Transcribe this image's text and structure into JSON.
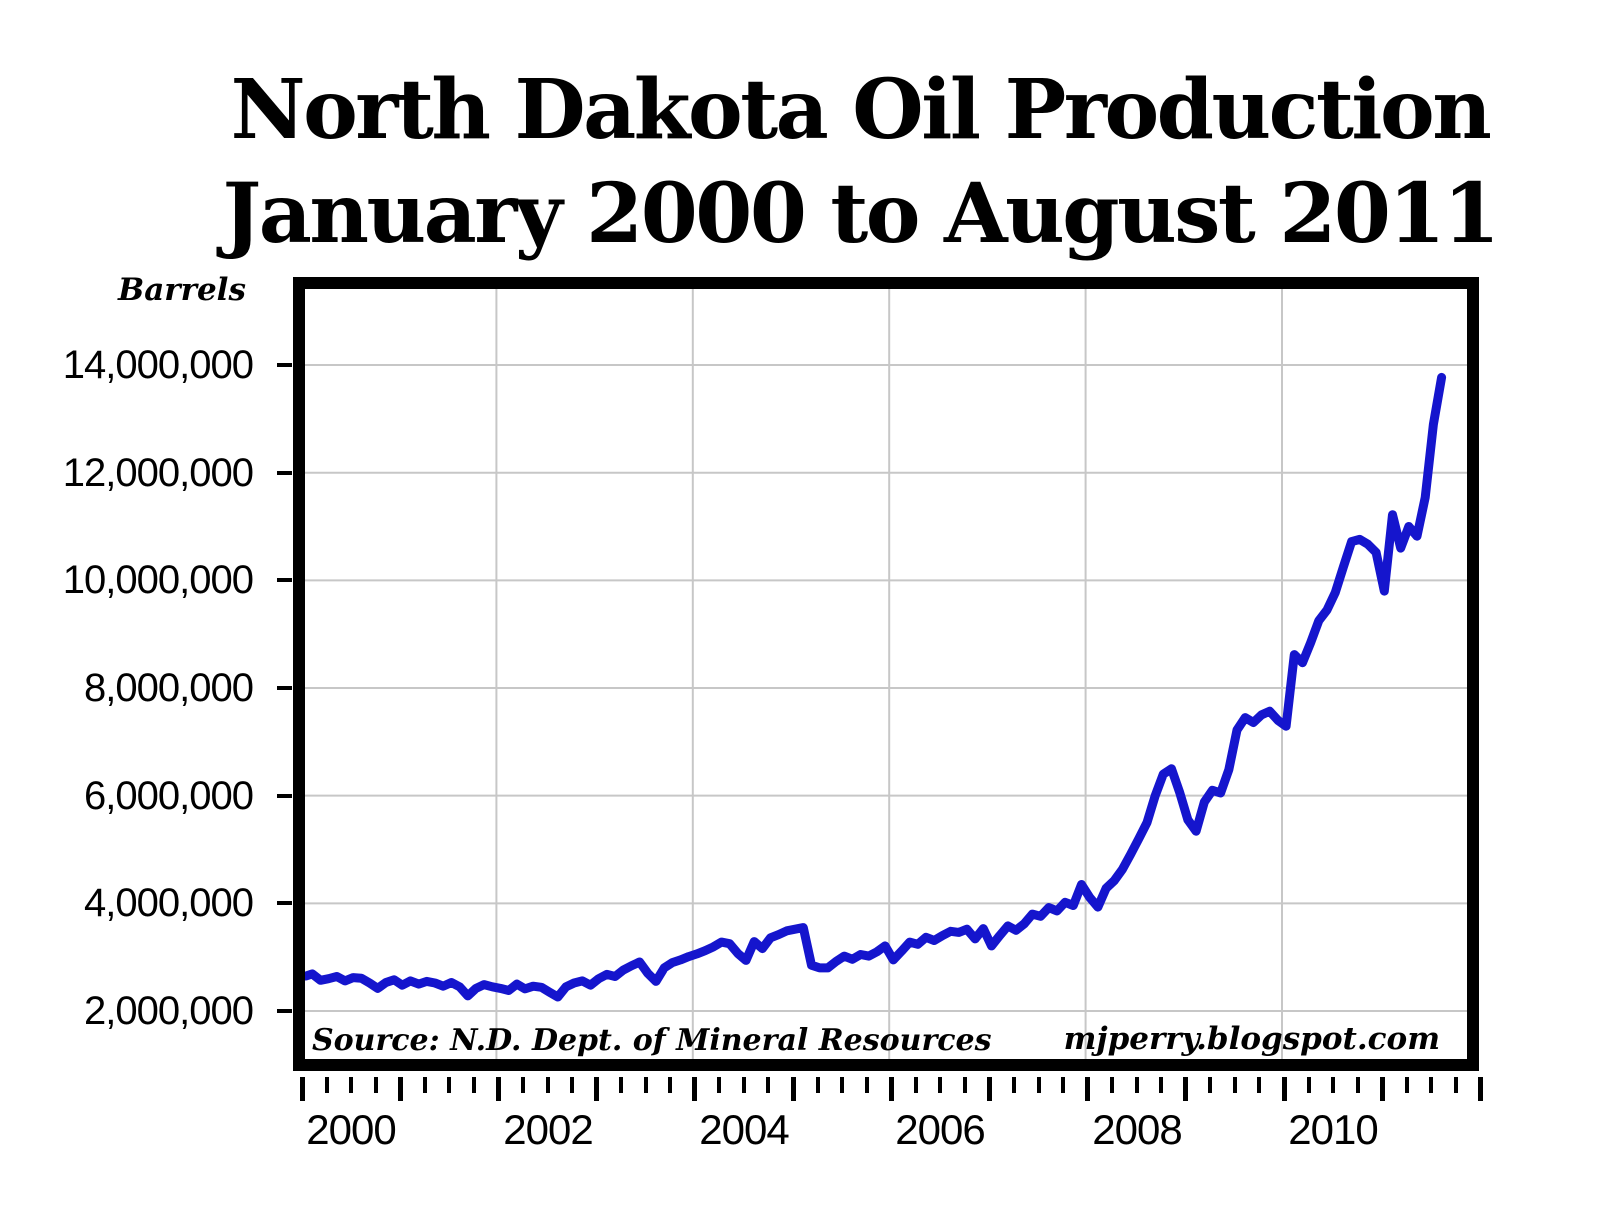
{
  "title": {
    "line1": "North Dakota Oil Production",
    "line2": "January 2000 to August 2011"
  },
  "annotations": {
    "source": "Source: N.D. Dept. of Mineral Resources",
    "credit": "mjperry.blogspot.com"
  },
  "chart_data": {
    "type": "line",
    "title": "North Dakota Oil Production January 2000 to August 2011",
    "xlabel": "",
    "ylabel": "Barrels",
    "x_range_years": [
      2000,
      2012
    ],
    "ylim_barrels": [
      1100000,
      15400000
    ],
    "grid": true,
    "legend_position": "none",
    "line_color": "#1515cd",
    "grid_color": "#c7c7c7",
    "frame_color": "#000000",
    "y_ticks": [
      {
        "label": "14,000,000",
        "value_millions": 14
      },
      {
        "label": "12,000,000",
        "value_millions": 12
      },
      {
        "label": "10,000,000",
        "value_millions": 10
      },
      {
        "label": "8,000,000",
        "value_millions": 8
      },
      {
        "label": "6,000,000",
        "value_millions": 6
      },
      {
        "label": "4,000,000",
        "value_millions": 4
      },
      {
        "label": "2,000,000",
        "value_millions": 2
      }
    ],
    "x_gridline_years": [
      2002,
      2004,
      2006,
      2008,
      2010
    ],
    "x_minor_tick_interval_years": 0.25,
    "x_major_tick_interval_years": 1,
    "x_tick_labels": [
      {
        "label": "2000",
        "x_year": 2000.5
      },
      {
        "label": "2002",
        "x_year": 2002.5
      },
      {
        "label": "2004",
        "x_year": 2004.5
      },
      {
        "label": "2006",
        "x_year": 2006.5
      },
      {
        "label": "2008",
        "x_year": 2008.5
      },
      {
        "label": "2010",
        "x_year": 2010.5
      }
    ],
    "series": [
      {
        "name": "North Dakota monthly oil production (barrels)",
        "start_month": "2000-01",
        "end_month": "2011-08",
        "values_millions": [
          2.65,
          2.69,
          2.57,
          2.6,
          2.64,
          2.56,
          2.62,
          2.61,
          2.52,
          2.42,
          2.53,
          2.58,
          2.48,
          2.56,
          2.5,
          2.55,
          2.52,
          2.46,
          2.53,
          2.45,
          2.28,
          2.42,
          2.49,
          2.45,
          2.42,
          2.38,
          2.5,
          2.41,
          2.46,
          2.44,
          2.35,
          2.26,
          2.45,
          2.52,
          2.56,
          2.48,
          2.6,
          2.68,
          2.64,
          2.76,
          2.84,
          2.91,
          2.7,
          2.55,
          2.8,
          2.9,
          2.95,
          3.01,
          3.06,
          3.12,
          3.19,
          3.28,
          3.25,
          3.07,
          2.94,
          3.29,
          3.16,
          3.36,
          3.42,
          3.49,
          3.52,
          3.55,
          2.85,
          2.8,
          2.8,
          2.92,
          3.02,
          2.96,
          3.05,
          3.02,
          3.1,
          3.21,
          2.95,
          3.11,
          3.28,
          3.24,
          3.37,
          3.31,
          3.4,
          3.48,
          3.46,
          3.52,
          3.34,
          3.53,
          3.21,
          3.4,
          3.58,
          3.5,
          3.62,
          3.8,
          3.76,
          3.92,
          3.86,
          4.02,
          3.96,
          4.35,
          4.11,
          3.93,
          4.28,
          4.42,
          4.63,
          4.91,
          5.2,
          5.5,
          6.0,
          6.4,
          6.5,
          6.06,
          5.55,
          5.34,
          5.88,
          6.1,
          6.05,
          6.48,
          7.22,
          7.45,
          7.36,
          7.5,
          7.57,
          7.4,
          7.29,
          8.62,
          8.47,
          8.84,
          9.25,
          9.45,
          9.77,
          10.25,
          10.72,
          10.76,
          10.67,
          10.52,
          9.8,
          11.22,
          10.6,
          11.0,
          10.82,
          11.54,
          12.9,
          13.77
        ]
      }
    ]
  }
}
